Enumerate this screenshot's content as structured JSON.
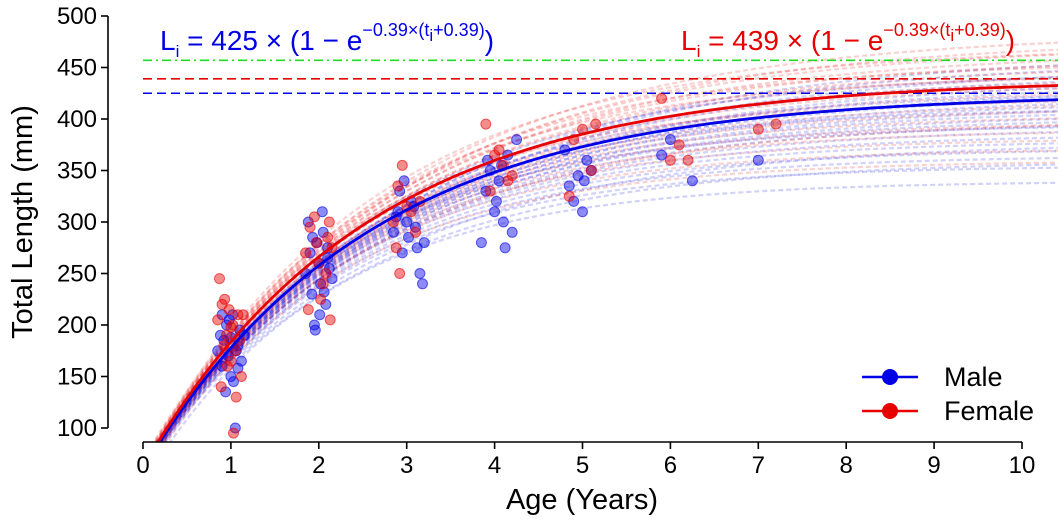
{
  "chart_data": {
    "type": "scatter",
    "xlabel": "Age (Years)",
    "ylabel": "Total Length (mm)",
    "xlim": [
      0,
      10
    ],
    "ylim": [
      100,
      500
    ],
    "xticks": [
      "0",
      "1",
      "2",
      "3",
      "4",
      "5",
      "6",
      "7",
      "8",
      "9",
      "10"
    ],
    "yticks": [
      "100",
      "150",
      "200",
      "250",
      "300",
      "350",
      "400",
      "450",
      "500"
    ],
    "grid": false,
    "legend_placement": "bottom-right",
    "asymptotes": [
      {
        "value": 425,
        "color": "#0000e6",
        "style": "dashed"
      },
      {
        "value": 439,
        "color": "#e60000",
        "style": "dashed"
      },
      {
        "value": 457,
        "color": "#22dd22",
        "style": "dash-dot"
      }
    ],
    "series": [
      {
        "name": "Male",
        "color": "#0000e6",
        "equation": {
          "Linf": "425",
          "k": "0.39",
          "t0": "0.39"
        },
        "fit": {
          "Linf": 425,
          "k": 0.39,
          "t0": 0.39
        },
        "points": [
          [
            0.85,
            175
          ],
          [
            0.88,
            190
          ],
          [
            0.9,
            160
          ],
          [
            0.92,
            185
          ],
          [
            0.95,
            200
          ],
          [
            0.97,
            170
          ],
          [
            1.0,
            150
          ],
          [
            1.02,
            210
          ],
          [
            1.05,
            100
          ],
          [
            1.08,
            180
          ],
          [
            1.1,
            195
          ],
          [
            1.12,
            165
          ],
          [
            0.94,
            135
          ],
          [
            1.03,
            145
          ],
          [
            0.98,
            205
          ],
          [
            1.06,
            175
          ],
          [
            1.15,
            190
          ],
          [
            0.9,
            210
          ],
          [
            1.0,
            188
          ],
          [
            1.08,
            158
          ],
          [
            1.85,
            250
          ],
          [
            1.9,
            270
          ],
          [
            1.92,
            230
          ],
          [
            1.95,
            200
          ],
          [
            1.98,
            280
          ],
          [
            2.0,
            260
          ],
          [
            2.02,
            240
          ],
          [
            2.05,
            290
          ],
          [
            2.08,
            220
          ],
          [
            2.1,
            265
          ],
          [
            2.12,
            255
          ],
          [
            2.15,
            245
          ],
          [
            1.88,
            300
          ],
          [
            1.96,
            195
          ],
          [
            2.04,
            310
          ],
          [
            2.06,
            232
          ],
          [
            2.1,
            275
          ],
          [
            1.93,
            285
          ],
          [
            2.01,
            210
          ],
          [
            2.85,
            290
          ],
          [
            2.9,
            310
          ],
          [
            2.92,
            330
          ],
          [
            2.95,
            270
          ],
          [
            3.0,
            300
          ],
          [
            3.02,
            285
          ],
          [
            3.05,
            320
          ],
          [
            3.1,
            295
          ],
          [
            3.15,
            250
          ],
          [
            3.2,
            280
          ],
          [
            2.97,
            340
          ],
          [
            3.08,
            315
          ],
          [
            3.18,
            240
          ],
          [
            2.88,
            305
          ],
          [
            3.12,
            275
          ],
          [
            3.85,
            280
          ],
          [
            3.9,
            330
          ],
          [
            3.95,
            350
          ],
          [
            4.0,
            310
          ],
          [
            4.05,
            340
          ],
          [
            4.1,
            300
          ],
          [
            4.15,
            365
          ],
          [
            4.2,
            290
          ],
          [
            4.25,
            380
          ],
          [
            3.92,
            360
          ],
          [
            4.02,
            320
          ],
          [
            4.08,
            355
          ],
          [
            4.12,
            275
          ],
          [
            4.85,
            335
          ],
          [
            4.95,
            345
          ],
          [
            5.0,
            310
          ],
          [
            5.05,
            360
          ],
          [
            5.1,
            350
          ],
          [
            4.9,
            320
          ],
          [
            5.02,
            340
          ],
          [
            4.8,
            370
          ],
          [
            5.9,
            365
          ],
          [
            6.25,
            340
          ],
          [
            7.0,
            360
          ],
          [
            6.0,
            380
          ]
        ]
      },
      {
        "name": "Female",
        "color": "#e60000",
        "equation": {
          "Linf": "439",
          "k": "0.39",
          "t0": "0.39"
        },
        "fit": {
          "Linf": 439,
          "k": 0.39,
          "t0": 0.39
        },
        "points": [
          [
            0.85,
            205
          ],
          [
            0.87,
            245
          ],
          [
            0.9,
            220
          ],
          [
            0.92,
            180
          ],
          [
            0.95,
            190
          ],
          [
            0.98,
            215
          ],
          [
            1.0,
            165
          ],
          [
            1.02,
            200
          ],
          [
            1.05,
            175
          ],
          [
            1.08,
            210
          ],
          [
            1.1,
            185
          ],
          [
            1.12,
            150
          ],
          [
            0.93,
            225
          ],
          [
            1.03,
            95
          ],
          [
            1.06,
            130
          ],
          [
            1.14,
            210
          ],
          [
            0.96,
            160
          ],
          [
            1.0,
            198
          ],
          [
            0.89,
            140
          ],
          [
            1.85,
            270
          ],
          [
            1.9,
            295
          ],
          [
            1.95,
            305
          ],
          [
            2.0,
            260
          ],
          [
            2.05,
            240
          ],
          [
            2.1,
            285
          ],
          [
            2.12,
            300
          ],
          [
            2.15,
            275
          ],
          [
            1.88,
            215
          ],
          [
            2.02,
            225
          ],
          [
            2.08,
            250
          ],
          [
            2.13,
            205
          ],
          [
            1.97,
            280
          ],
          [
            2.85,
            300
          ],
          [
            2.9,
            335
          ],
          [
            2.95,
            355
          ],
          [
            3.0,
            315
          ],
          [
            3.05,
            310
          ],
          [
            3.1,
            290
          ],
          [
            3.15,
            320
          ],
          [
            2.88,
            275
          ],
          [
            2.92,
            250
          ],
          [
            3.9,
            395
          ],
          [
            4.0,
            365
          ],
          [
            4.05,
            370
          ],
          [
            4.1,
            355
          ],
          [
            4.15,
            340
          ],
          [
            4.2,
            345
          ],
          [
            3.95,
            330
          ],
          [
            4.9,
            380
          ],
          [
            5.0,
            390
          ],
          [
            5.15,
            395
          ],
          [
            4.85,
            325
          ],
          [
            5.1,
            350
          ],
          [
            5.9,
            420
          ],
          [
            6.0,
            360
          ],
          [
            6.2,
            360
          ],
          [
            7.0,
            390
          ],
          [
            7.2,
            395
          ],
          [
            6.1,
            375
          ]
        ]
      }
    ],
    "individual_curves": {
      "Male": [
        {
          "Linf": 340,
          "k": 0.48,
          "t0": 0.3
        },
        {
          "Linf": 355,
          "k": 0.47,
          "t0": 0.33
        },
        {
          "Linf": 365,
          "k": 0.45,
          "t0": 0.35
        },
        {
          "Linf": 372,
          "k": 0.44,
          "t0": 0.36
        },
        {
          "Linf": 380,
          "k": 0.43,
          "t0": 0.37
        },
        {
          "Linf": 386,
          "k": 0.42,
          "t0": 0.38
        },
        {
          "Linf": 392,
          "k": 0.41,
          "t0": 0.38
        },
        {
          "Linf": 398,
          "k": 0.4,
          "t0": 0.39
        },
        {
          "Linf": 402,
          "k": 0.4,
          "t0": 0.4
        },
        {
          "Linf": 406,
          "k": 0.39,
          "t0": 0.4
        },
        {
          "Linf": 410,
          "k": 0.39,
          "t0": 0.41
        },
        {
          "Linf": 414,
          "k": 0.38,
          "t0": 0.41
        },
        {
          "Linf": 418,
          "k": 0.38,
          "t0": 0.42
        },
        {
          "Linf": 422,
          "k": 0.37,
          "t0": 0.42
        },
        {
          "Linf": 426,
          "k": 0.37,
          "t0": 0.43
        },
        {
          "Linf": 430,
          "k": 0.36,
          "t0": 0.43
        },
        {
          "Linf": 435,
          "k": 0.36,
          "t0": 0.44
        },
        {
          "Linf": 440,
          "k": 0.35,
          "t0": 0.44
        },
        {
          "Linf": 446,
          "k": 0.35,
          "t0": 0.45
        },
        {
          "Linf": 452,
          "k": 0.34,
          "t0": 0.45
        },
        {
          "Linf": 458,
          "k": 0.34,
          "t0": 0.46
        },
        {
          "Linf": 465,
          "k": 0.33,
          "t0": 0.46
        },
        {
          "Linf": 395,
          "k": 0.45,
          "t0": 0.3
        },
        {
          "Linf": 378,
          "k": 0.38,
          "t0": 0.5
        },
        {
          "Linf": 412,
          "k": 0.43,
          "t0": 0.32
        },
        {
          "Linf": 360,
          "k": 0.41,
          "t0": 0.45
        },
        {
          "Linf": 428,
          "k": 0.4,
          "t0": 0.36
        },
        {
          "Linf": 448,
          "k": 0.38,
          "t0": 0.38
        }
      ],
      "Female": [
        {
          "Linf": 360,
          "k": 0.47,
          "t0": 0.31
        },
        {
          "Linf": 372,
          "k": 0.46,
          "t0": 0.33
        },
        {
          "Linf": 382,
          "k": 0.45,
          "t0": 0.34
        },
        {
          "Linf": 390,
          "k": 0.44,
          "t0": 0.35
        },
        {
          "Linf": 398,
          "k": 0.43,
          "t0": 0.36
        },
        {
          "Linf": 405,
          "k": 0.42,
          "t0": 0.37
        },
        {
          "Linf": 412,
          "k": 0.41,
          "t0": 0.38
        },
        {
          "Linf": 418,
          "k": 0.4,
          "t0": 0.38
        },
        {
          "Linf": 424,
          "k": 0.4,
          "t0": 0.39
        },
        {
          "Linf": 430,
          "k": 0.39,
          "t0": 0.39
        },
        {
          "Linf": 436,
          "k": 0.39,
          "t0": 0.4
        },
        {
          "Linf": 442,
          "k": 0.38,
          "t0": 0.4
        },
        {
          "Linf": 448,
          "k": 0.38,
          "t0": 0.41
        },
        {
          "Linf": 454,
          "k": 0.37,
          "t0": 0.41
        },
        {
          "Linf": 460,
          "k": 0.37,
          "t0": 0.42
        },
        {
          "Linf": 466,
          "k": 0.36,
          "t0": 0.42
        },
        {
          "Linf": 472,
          "k": 0.36,
          "t0": 0.43
        },
        {
          "Linf": 478,
          "k": 0.35,
          "t0": 0.43
        },
        {
          "Linf": 485,
          "k": 0.35,
          "t0": 0.44
        },
        {
          "Linf": 420,
          "k": 0.45,
          "t0": 0.3
        },
        {
          "Linf": 400,
          "k": 0.38,
          "t0": 0.48
        },
        {
          "Linf": 444,
          "k": 0.42,
          "t0": 0.33
        },
        {
          "Linf": 456,
          "k": 0.4,
          "t0": 0.36
        },
        {
          "Linf": 470,
          "k": 0.39,
          "t0": 0.37
        }
      ]
    }
  }
}
